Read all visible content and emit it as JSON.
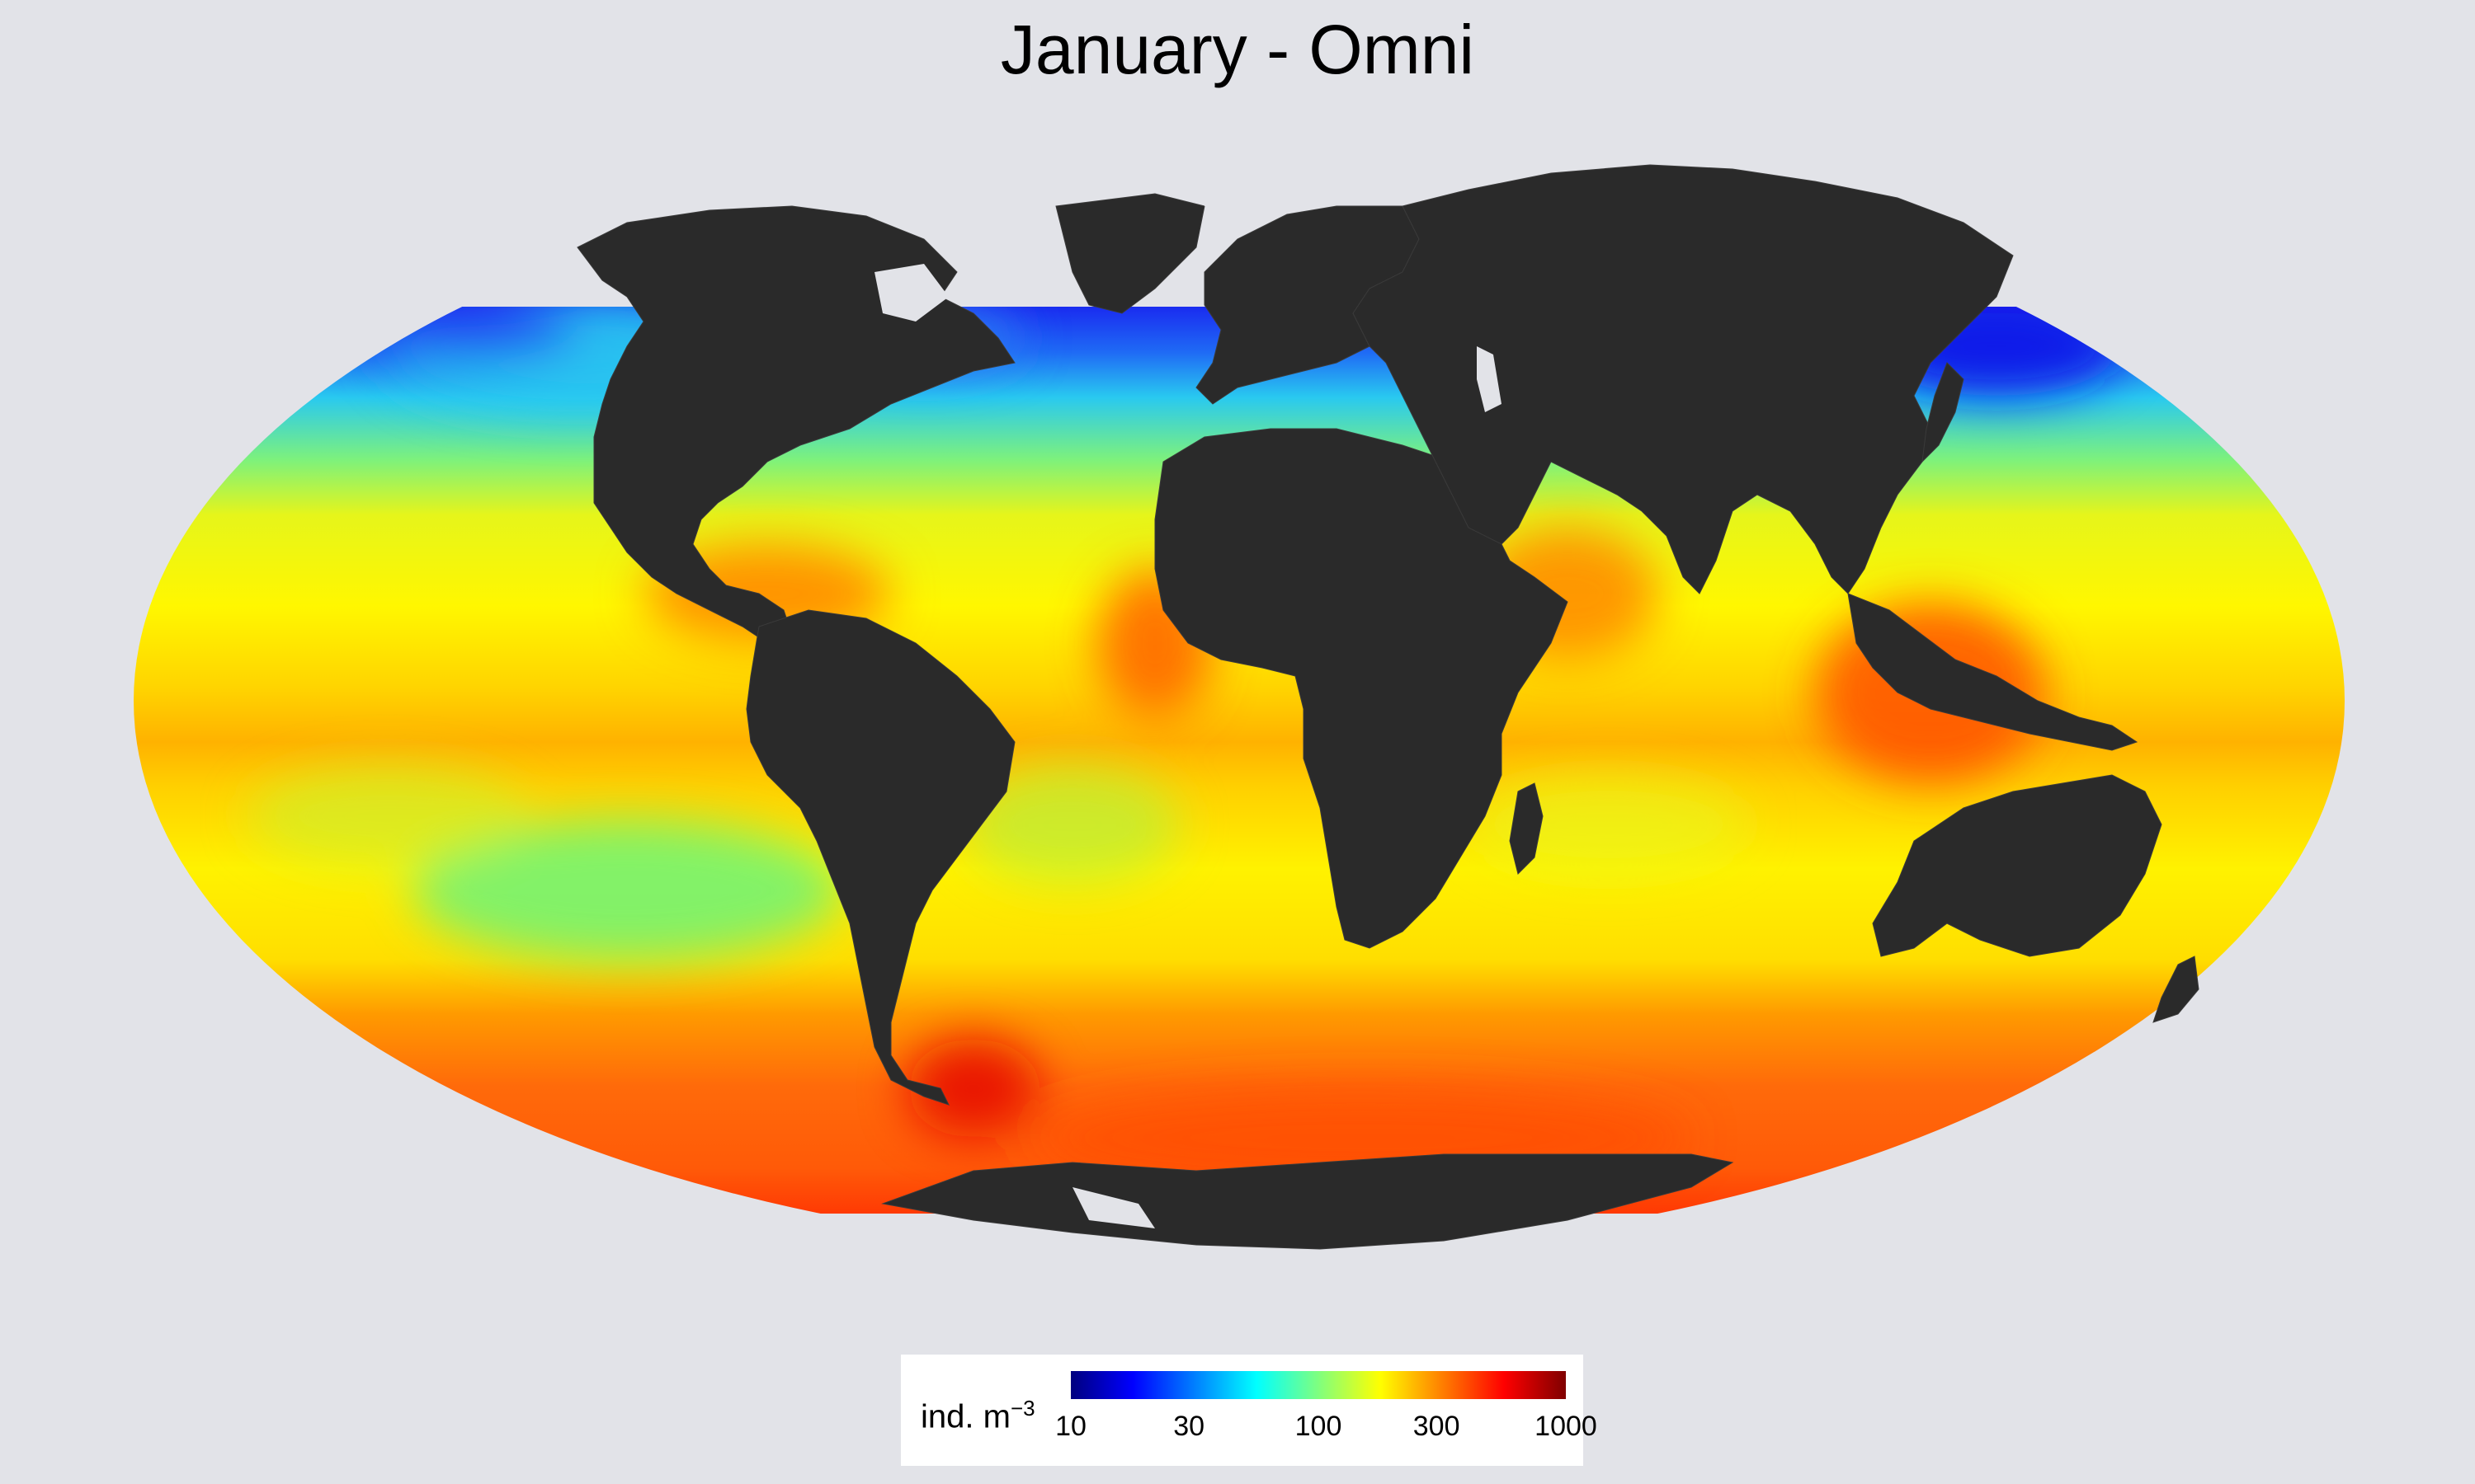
{
  "title": "January - Omni",
  "legend": {
    "label": "ind. m",
    "label_exponent": "−3",
    "ticks": [
      "10",
      "30",
      "100",
      "300",
      "1000"
    ],
    "colormap": [
      "#00007f",
      "#0000ff",
      "#007fff",
      "#00ffff",
      "#7fff7f",
      "#ffff00",
      "#ff7f00",
      "#ff0000",
      "#7f0000"
    ],
    "scale": "log",
    "range": [
      10,
      1000
    ]
  },
  "map": {
    "projection": "Mollweide",
    "ocean_colors": {
      "arctic_low": "#1a2cf0",
      "subpolar": "#29c9f0",
      "temperate": "#e6f51a",
      "subtropical": "#fff700",
      "equatorial": "#ffb200",
      "southern": "#ff6a0a",
      "coastal_high": "#e80c00"
    },
    "land_color": "#2a2a2a",
    "ice_color": "#e2e3e8"
  }
}
